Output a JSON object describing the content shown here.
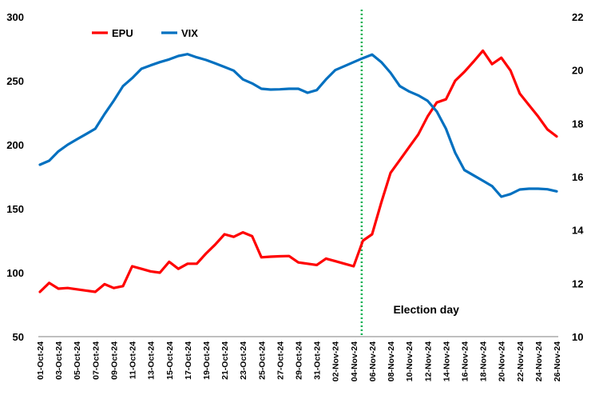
{
  "chart_data": {
    "type": "line",
    "title": "",
    "x": [
      "01-Oct-24",
      "02-Oct-24",
      "03-Oct-24",
      "04-Oct-24",
      "05-Oct-24",
      "06-Oct-24",
      "07-Oct-24",
      "08-Oct-24",
      "09-Oct-24",
      "10-Oct-24",
      "11-Oct-24",
      "12-Oct-24",
      "13-Oct-24",
      "14-Oct-24",
      "15-Oct-24",
      "16-Oct-24",
      "17-Oct-24",
      "18-Oct-24",
      "19-Oct-24",
      "20-Oct-24",
      "21-Oct-24",
      "22-Oct-24",
      "23-Oct-24",
      "24-Oct-24",
      "25-Oct-24",
      "26-Oct-24",
      "27-Oct-24",
      "28-Oct-24",
      "29-Oct-24",
      "30-Oct-24",
      "31-Oct-24",
      "01-Nov-24",
      "02-Nov-24",
      "03-Nov-24",
      "04-Nov-24",
      "05-Nov-24",
      "06-Nov-24",
      "07-Nov-24",
      "08-Nov-24",
      "09-Nov-24",
      "10-Nov-24",
      "11-Nov-24",
      "12-Nov-24",
      "13-Nov-24",
      "14-Nov-24",
      "15-Nov-24",
      "16-Nov-24",
      "17-Nov-24",
      "18-Nov-24",
      "19-Nov-24",
      "20-Nov-24",
      "21-Nov-24",
      "22-Nov-24",
      "23-Nov-24",
      "24-Nov-24",
      "25-Nov-24",
      "26-Nov-24"
    ],
    "x_tick_labels": [
      "01-Oct-24",
      "03-Oct-24",
      "05-Oct-24",
      "07-Oct-24",
      "09-Oct-24",
      "11-Oct-24",
      "13-Oct-24",
      "15-Oct-24",
      "17-Oct-24",
      "19-Oct-24",
      "21-Oct-24",
      "23-Oct-24",
      "25-Oct-24",
      "27-Oct-24",
      "29-Oct-24",
      "31-Oct-24",
      "02-Nov-24",
      "04-Nov-24",
      "06-Nov-24",
      "08-Nov-24",
      "10-Nov-24",
      "12-Nov-24",
      "14-Nov-24",
      "16-Nov-24",
      "18-Nov-24",
      "20-Nov-24",
      "22-Nov-24",
      "24-Nov-24",
      "26-Nov-24"
    ],
    "series": [
      {
        "name": "EPU",
        "axis": "left",
        "color": "#ff0000",
        "values": [
          85,
          92,
          87.5,
          88,
          87,
          86,
          85,
          91,
          88,
          89.5,
          105,
          103,
          101,
          100,
          108.5,
          103,
          107,
          107,
          115,
          122,
          130,
          128,
          131.5,
          128.5,
          112,
          112.5,
          112.8,
          113,
          108,
          107,
          106,
          111,
          109,
          107,
          105,
          125,
          130,
          155,
          178,
          188,
          198,
          208,
          222,
          233,
          235.5,
          250,
          257,
          265,
          273.5,
          263,
          268,
          258,
          240,
          231,
          222,
          212,
          206.5
        ]
      },
      {
        "name": "VIX",
        "axis": "right",
        "color": "#0070c0",
        "values": [
          16.45,
          16.6,
          16.95,
          17.2,
          17.4,
          17.6,
          17.8,
          18.35,
          18.85,
          19.4,
          19.7,
          20.05,
          20.18,
          20.3,
          20.4,
          20.53,
          20.6,
          20.48,
          20.38,
          20.25,
          20.12,
          19.98,
          19.65,
          19.5,
          19.3,
          19.27,
          19.28,
          19.3,
          19.3,
          19.15,
          19.25,
          19.65,
          20.0,
          20.15,
          20.3,
          20.45,
          20.58,
          20.3,
          19.9,
          19.4,
          19.2,
          19.05,
          18.85,
          18.45,
          17.8,
          16.9,
          16.25,
          16.05,
          15.85,
          15.65,
          15.25,
          15.35,
          15.52,
          15.55,
          15.55,
          15.53,
          15.45
        ]
      }
    ],
    "left_axis": {
      "ylim": [
        50,
        300
      ],
      "ticks": [
        "50",
        "100",
        "150",
        "200",
        "250",
        "300"
      ]
    },
    "right_axis": {
      "ylim": [
        10,
        22
      ],
      "ticks": [
        "10",
        "12",
        "14",
        "16",
        "18",
        "20",
        "22"
      ]
    },
    "vertical_marker": {
      "x": "05-Nov-24",
      "color": "#00b050",
      "style": "dotted"
    },
    "annotation": {
      "text": "Election day",
      "x": "11-Nov-24",
      "y_left": 68
    },
    "legend_placement": "top-left",
    "grid": false
  }
}
